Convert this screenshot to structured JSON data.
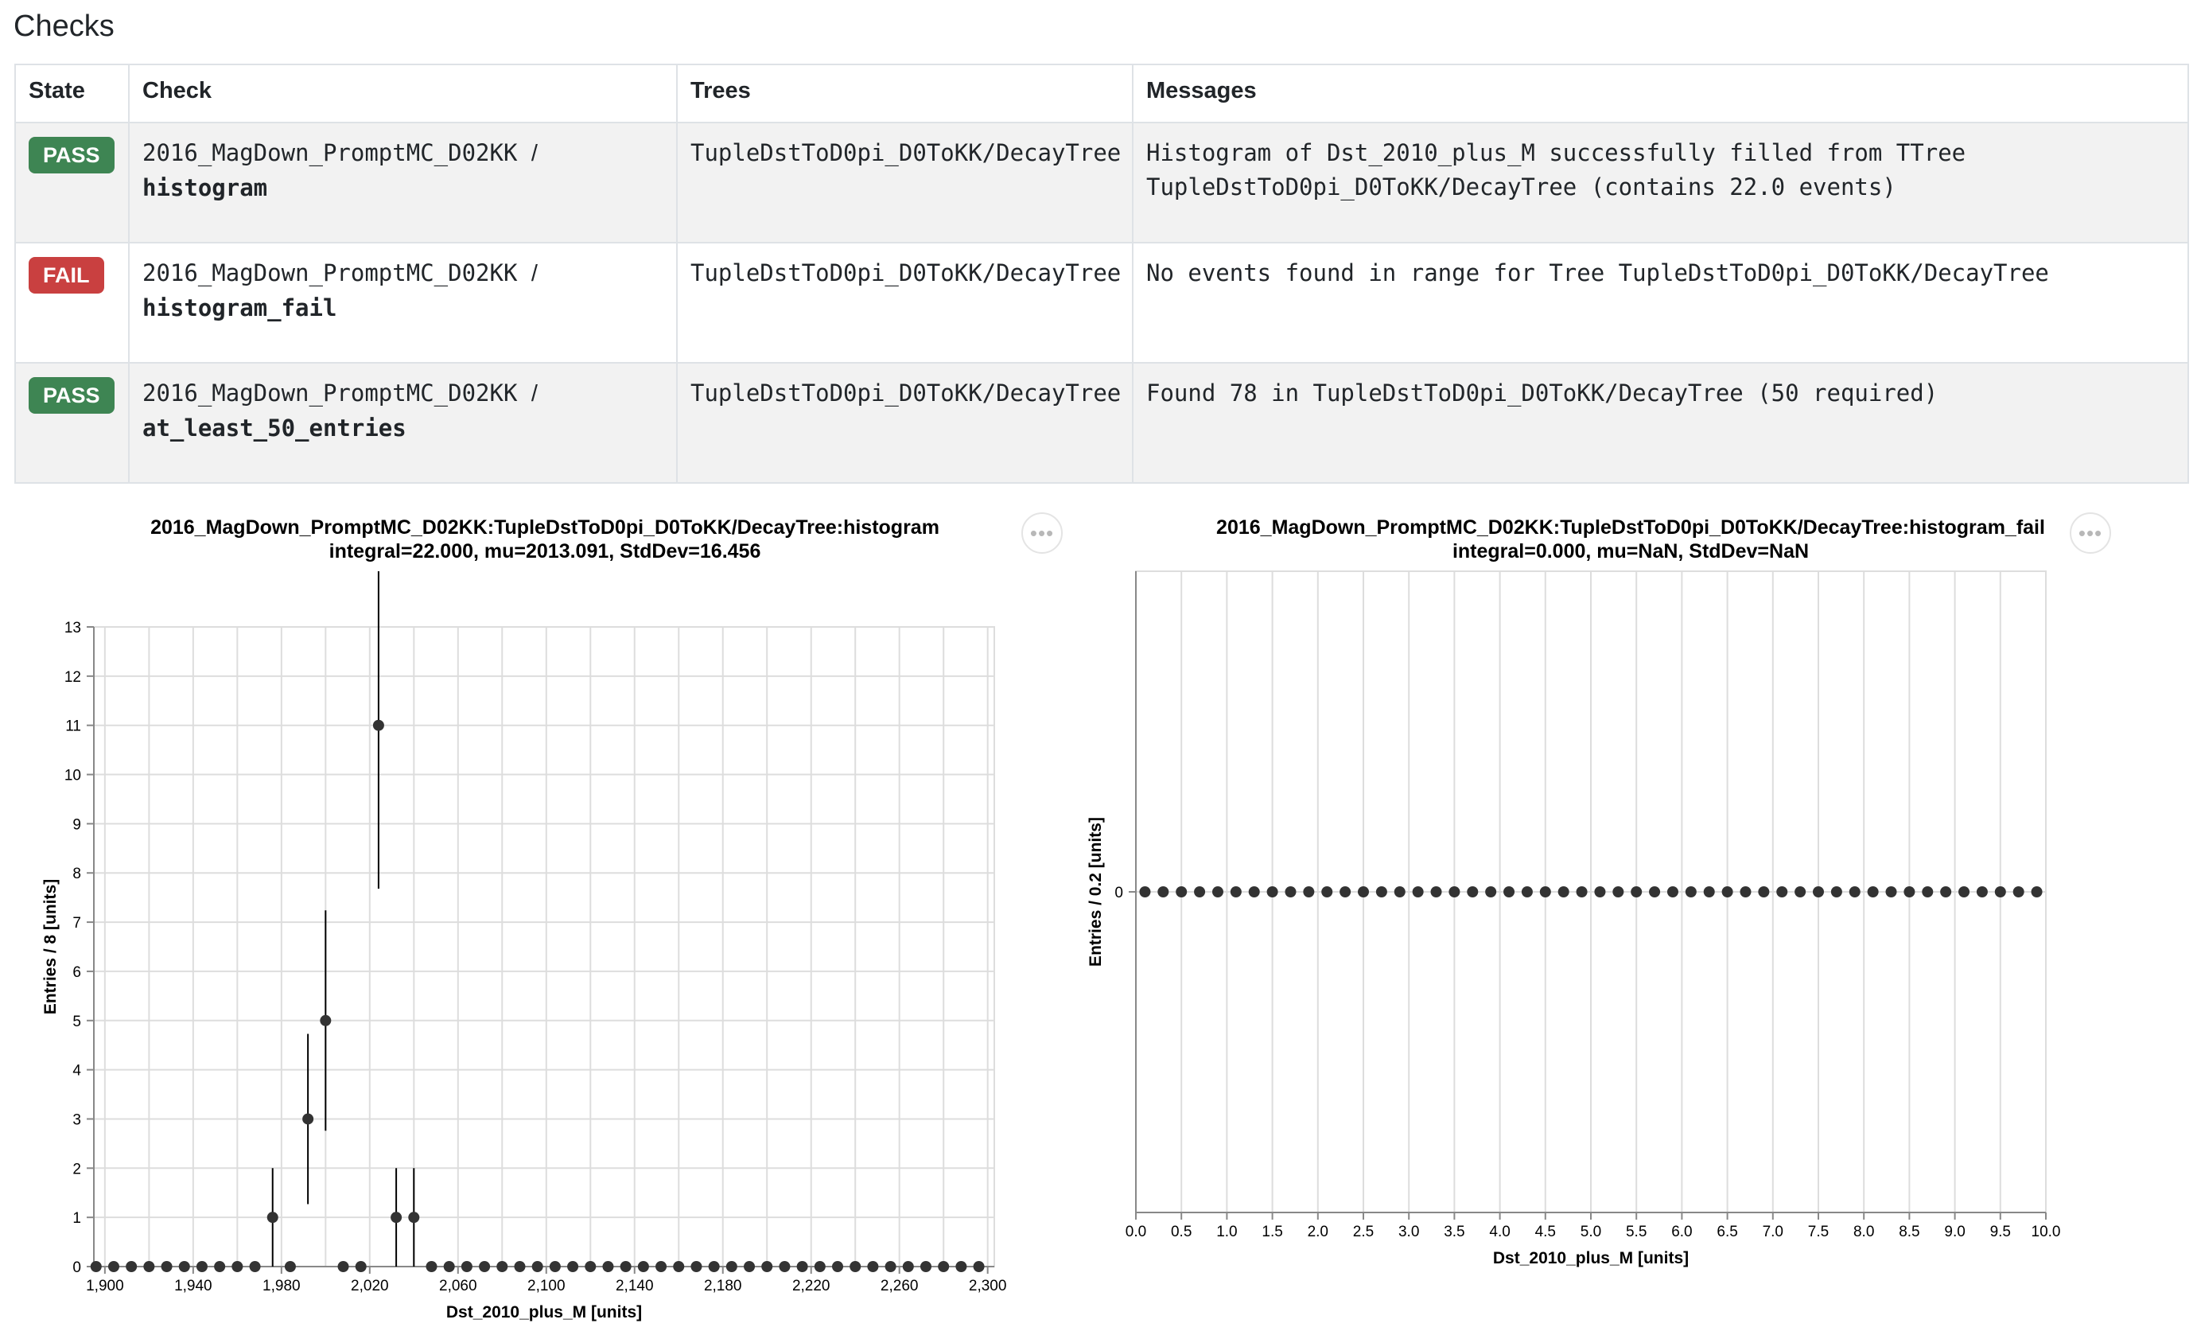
{
  "page": {
    "title": "Checks"
  },
  "table": {
    "headers": [
      "State",
      "Check",
      "Trees",
      "Messages"
    ],
    "rows": [
      {
        "state": "PASS",
        "check_prefix": "2016_MagDown_PromptMC_D02KK",
        "check_separator": "/",
        "check_name": "histogram",
        "trees": "TupleDstToD0pi_D0ToKK/DecayTree",
        "message": "Histogram of Dst_2010_plus_M successfully filled from TTree TupleDstToD0pi_D0ToKK/DecayTree (contains 22.0 events)"
      },
      {
        "state": "FAIL",
        "check_prefix": "2016_MagDown_PromptMC_D02KK",
        "check_separator": "/",
        "check_name": "histogram_fail",
        "trees": "TupleDstToD0pi_D0ToKK/DecayTree",
        "message": "No events found in range for Tree TupleDstToD0pi_D0ToKK/DecayTree"
      },
      {
        "state": "PASS",
        "check_prefix": "2016_MagDown_PromptMC_D02KK",
        "check_separator": "/",
        "check_name": "at_least_50_entries",
        "trees": "TupleDstToD0pi_D0ToKK/DecayTree",
        "message": "Found 78 in TupleDstToD0pi_D0ToKK/DecayTree (50 required)"
      }
    ]
  },
  "colors": {
    "pass": "#3e8553",
    "fail": "#c94040",
    "marker": "#333333",
    "grid": "#dddddd",
    "axis": "#888888"
  },
  "actions": {
    "more_icon": "ellipsis-icon",
    "more_label": "•••"
  },
  "plots": [
    {
      "title_line1": "2016_MagDown_PromptMC_D02KK:TupleDstToD0pi_D0ToKK/DecayTree:histogram",
      "title_line2": "integral=22.000, mu=2013.091, StdDev=16.456"
    },
    {
      "title_line1": "2016_MagDown_PromptMC_D02KK:TupleDstToD0pi_D0ToKK/DecayTree:histogram_fail",
      "title_line2": "integral=0.000, mu=NaN, StdDev=NaN"
    }
  ],
  "chart_data": [
    {
      "type": "scatter",
      "xlabel": "Dst_2010_plus_M [units]",
      "ylabel": "Entries / 8 [units]",
      "xlim": [
        1895,
        2303
      ],
      "ylim": [
        0,
        13
      ],
      "grid": true,
      "x_ticks": [
        1900,
        1940,
        1980,
        2020,
        2060,
        2100,
        2140,
        2180,
        2220,
        2260,
        2300
      ],
      "x_tick_labels": [
        "1,900",
        "1,940",
        "1,980",
        "2,020",
        "2,060",
        "2,100",
        "2,140",
        "2,180",
        "2,220",
        "2,260",
        "2,300"
      ],
      "x_grid": [
        1900,
        1920,
        1940,
        1960,
        1980,
        2000,
        2020,
        2040,
        2060,
        2080,
        2100,
        2120,
        2140,
        2160,
        2180,
        2200,
        2220,
        2240,
        2260,
        2280,
        2300
      ],
      "y_ticks": [
        0,
        1,
        2,
        3,
        4,
        5,
        6,
        7,
        8,
        9,
        10,
        11,
        12,
        13
      ],
      "y_tick_labels": [
        "0",
        "1",
        "2",
        "3",
        "4",
        "5",
        "6",
        "7",
        "8",
        "9",
        "10",
        "11",
        "12",
        "13"
      ],
      "points": [
        {
          "x": 1896,
          "y": 0
        },
        {
          "x": 1904,
          "y": 0
        },
        {
          "x": 1912,
          "y": 0
        },
        {
          "x": 1920,
          "y": 0
        },
        {
          "x": 1928,
          "y": 0
        },
        {
          "x": 1936,
          "y": 0
        },
        {
          "x": 1944,
          "y": 0
        },
        {
          "x": 1952,
          "y": 0
        },
        {
          "x": 1960,
          "y": 0
        },
        {
          "x": 1968,
          "y": 0
        },
        {
          "x": 1976,
          "y": 1,
          "err_low": 0,
          "err_high": 2
        },
        {
          "x": 1984,
          "y": 0
        },
        {
          "x": 1992,
          "y": 3,
          "err_low": 1.27,
          "err_high": 4.73
        },
        {
          "x": 2000,
          "y": 5,
          "err_low": 2.76,
          "err_high": 7.24
        },
        {
          "x": 2008,
          "y": 0
        },
        {
          "x": 2016,
          "y": 0
        },
        {
          "x": 2024,
          "y": 11,
          "err_low": 7.68,
          "err_high": 14.32
        },
        {
          "x": 2032,
          "y": 1,
          "err_low": 0,
          "err_high": 2
        },
        {
          "x": 2040,
          "y": 1,
          "err_low": 0,
          "err_high": 2
        },
        {
          "x": 2048,
          "y": 0
        },
        {
          "x": 2056,
          "y": 0
        },
        {
          "x": 2064,
          "y": 0
        },
        {
          "x": 2072,
          "y": 0
        },
        {
          "x": 2080,
          "y": 0
        },
        {
          "x": 2088,
          "y": 0
        },
        {
          "x": 2096,
          "y": 0
        },
        {
          "x": 2104,
          "y": 0
        },
        {
          "x": 2112,
          "y": 0
        },
        {
          "x": 2120,
          "y": 0
        },
        {
          "x": 2128,
          "y": 0
        },
        {
          "x": 2136,
          "y": 0
        },
        {
          "x": 2144,
          "y": 0
        },
        {
          "x": 2152,
          "y": 0
        },
        {
          "x": 2160,
          "y": 0
        },
        {
          "x": 2168,
          "y": 0
        },
        {
          "x": 2176,
          "y": 0
        },
        {
          "x": 2184,
          "y": 0
        },
        {
          "x": 2192,
          "y": 0
        },
        {
          "x": 2200,
          "y": 0
        },
        {
          "x": 2208,
          "y": 0
        },
        {
          "x": 2216,
          "y": 0
        },
        {
          "x": 2224,
          "y": 0
        },
        {
          "x": 2232,
          "y": 0
        },
        {
          "x": 2240,
          "y": 0
        },
        {
          "x": 2248,
          "y": 0
        },
        {
          "x": 2256,
          "y": 0
        },
        {
          "x": 2264,
          "y": 0
        },
        {
          "x": 2272,
          "y": 0
        },
        {
          "x": 2280,
          "y": 0
        },
        {
          "x": 2288,
          "y": 0
        },
        {
          "x": 2296,
          "y": 0
        }
      ]
    },
    {
      "type": "scatter",
      "xlabel": "Dst_2010_plus_M [units]",
      "ylabel": "Entries / 0.2 [units]",
      "xlim": [
        0,
        10
      ],
      "ylim": [
        -1,
        1
      ],
      "grid": true,
      "x_ticks": [
        0,
        0.5,
        1,
        1.5,
        2,
        2.5,
        3,
        3.5,
        4,
        4.5,
        5,
        5.5,
        6,
        6.5,
        7,
        7.5,
        8,
        8.5,
        9,
        9.5,
        10
      ],
      "x_tick_labels": [
        "0.0",
        "0.5",
        "1.0",
        "1.5",
        "2.0",
        "2.5",
        "3.0",
        "3.5",
        "4.0",
        "4.5",
        "5.0",
        "5.5",
        "6.0",
        "6.5",
        "7.0",
        "7.5",
        "8.0",
        "8.5",
        "9.0",
        "9.5",
        "10.0"
      ],
      "x_grid": [
        0,
        0.5,
        1,
        1.5,
        2,
        2.5,
        3,
        3.5,
        4,
        4.5,
        5,
        5.5,
        6,
        6.5,
        7,
        7.5,
        8,
        8.5,
        9,
        9.5,
        10
      ],
      "y_ticks": [
        0
      ],
      "y_tick_labels": [
        "0"
      ],
      "points": [
        {
          "x": 0.1,
          "y": 0
        },
        {
          "x": 0.3,
          "y": 0
        },
        {
          "x": 0.5,
          "y": 0
        },
        {
          "x": 0.7,
          "y": 0
        },
        {
          "x": 0.9,
          "y": 0
        },
        {
          "x": 1.1,
          "y": 0
        },
        {
          "x": 1.3,
          "y": 0
        },
        {
          "x": 1.5,
          "y": 0
        },
        {
          "x": 1.7,
          "y": 0
        },
        {
          "x": 1.9,
          "y": 0
        },
        {
          "x": 2.1,
          "y": 0
        },
        {
          "x": 2.3,
          "y": 0
        },
        {
          "x": 2.5,
          "y": 0
        },
        {
          "x": 2.7,
          "y": 0
        },
        {
          "x": 2.9,
          "y": 0
        },
        {
          "x": 3.1,
          "y": 0
        },
        {
          "x": 3.3,
          "y": 0
        },
        {
          "x": 3.5,
          "y": 0
        },
        {
          "x": 3.7,
          "y": 0
        },
        {
          "x": 3.9,
          "y": 0
        },
        {
          "x": 4.1,
          "y": 0
        },
        {
          "x": 4.3,
          "y": 0
        },
        {
          "x": 4.5,
          "y": 0
        },
        {
          "x": 4.7,
          "y": 0
        },
        {
          "x": 4.9,
          "y": 0
        },
        {
          "x": 5.1,
          "y": 0
        },
        {
          "x": 5.3,
          "y": 0
        },
        {
          "x": 5.5,
          "y": 0
        },
        {
          "x": 5.7,
          "y": 0
        },
        {
          "x": 5.9,
          "y": 0
        },
        {
          "x": 6.1,
          "y": 0
        },
        {
          "x": 6.3,
          "y": 0
        },
        {
          "x": 6.5,
          "y": 0
        },
        {
          "x": 6.7,
          "y": 0
        },
        {
          "x": 6.9,
          "y": 0
        },
        {
          "x": 7.1,
          "y": 0
        },
        {
          "x": 7.3,
          "y": 0
        },
        {
          "x": 7.5,
          "y": 0
        },
        {
          "x": 7.7,
          "y": 0
        },
        {
          "x": 7.9,
          "y": 0
        },
        {
          "x": 8.1,
          "y": 0
        },
        {
          "x": 8.3,
          "y": 0
        },
        {
          "x": 8.5,
          "y": 0
        },
        {
          "x": 8.7,
          "y": 0
        },
        {
          "x": 8.9,
          "y": 0
        },
        {
          "x": 9.1,
          "y": 0
        },
        {
          "x": 9.3,
          "y": 0
        },
        {
          "x": 9.5,
          "y": 0
        },
        {
          "x": 9.7,
          "y": 0
        },
        {
          "x": 9.9,
          "y": 0
        }
      ]
    }
  ]
}
